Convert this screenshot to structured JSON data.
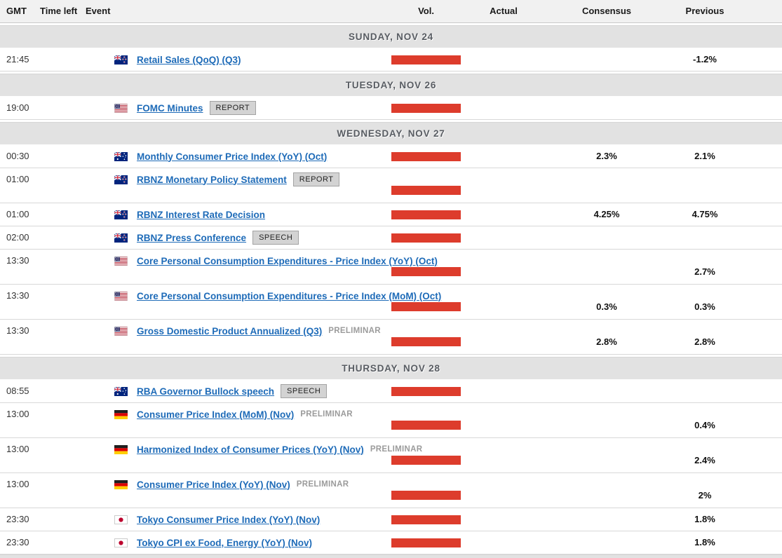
{
  "header": {
    "gmt": "GMT",
    "time_left": "Time left",
    "event": "Event",
    "vol": "Vol.",
    "actual": "Actual",
    "consensus": "Consensus",
    "previous": "Previous"
  },
  "colors": {
    "volume_bar": "#dd3c2c",
    "link_blue": "#1e6bb8",
    "day_row_bg": "#e2e2e2",
    "badge_bg": "#d3d3d3",
    "badge_border": "#a3a3a3",
    "preliminary_text": "#9b9b9b"
  },
  "days": [
    {
      "label": "SUNDAY, NOV 24",
      "events": [
        {
          "time": "21:45",
          "country": "new-zealand",
          "title": "Retail Sales (QoQ) (Q3)",
          "badge": "",
          "note": "",
          "tall": false,
          "actual": "",
          "consensus": "",
          "previous": "-1.2%"
        }
      ]
    },
    {
      "label": "TUESDAY, NOV 26",
      "events": [
        {
          "time": "19:00",
          "country": "united-states",
          "title": "FOMC Minutes",
          "badge": "REPORT",
          "note": "",
          "tall": false,
          "actual": "",
          "consensus": "",
          "previous": ""
        }
      ]
    },
    {
      "label": "WEDNESDAY, NOV 27",
      "events": [
        {
          "time": "00:30",
          "country": "australia",
          "title": "Monthly Consumer Price Index (YoY) (Oct)",
          "badge": "",
          "note": "",
          "tall": false,
          "actual": "",
          "consensus": "2.3%",
          "previous": "2.1%"
        },
        {
          "time": "01:00",
          "country": "new-zealand",
          "title": "RBNZ Monetary Policy Statement",
          "badge": "REPORT",
          "note": "",
          "tall": true,
          "actual": "",
          "consensus": "",
          "previous": ""
        },
        {
          "time": "01:00",
          "country": "new-zealand",
          "title": "RBNZ Interest Rate Decision",
          "badge": "",
          "note": "",
          "tall": false,
          "actual": "",
          "consensus": "4.25%",
          "previous": "4.75%"
        },
        {
          "time": "02:00",
          "country": "new-zealand",
          "title": "RBNZ Press Conference",
          "badge": "SPEECH",
          "note": "",
          "tall": false,
          "actual": "",
          "consensus": "",
          "previous": ""
        },
        {
          "time": "13:30",
          "country": "united-states",
          "title": "Core Personal Consumption Expenditures - Price Index (YoY) (Oct)",
          "badge": "",
          "note": "",
          "tall": true,
          "actual": "",
          "consensus": "",
          "previous": "2.7%"
        },
        {
          "time": "13:30",
          "country": "united-states",
          "title": "Core Personal Consumption Expenditures - Price Index (MoM) (Oct)",
          "badge": "",
          "note": "",
          "tall": true,
          "actual": "",
          "consensus": "0.3%",
          "previous": "0.3%"
        },
        {
          "time": "13:30",
          "country": "united-states",
          "title": "Gross Domestic Product Annualized (Q3)",
          "badge": "",
          "note": "PRELIMINAR",
          "tall": true,
          "actual": "",
          "consensus": "2.8%",
          "previous": "2.8%"
        }
      ]
    },
    {
      "label": "THURSDAY, NOV 28",
      "events": [
        {
          "time": "08:55",
          "country": "australia",
          "title": "RBA Governor Bullock speech",
          "badge": "SPEECH",
          "note": "",
          "tall": false,
          "actual": "",
          "consensus": "",
          "previous": ""
        },
        {
          "time": "13:00",
          "country": "germany",
          "title": "Consumer Price Index (MoM) (Nov)",
          "badge": "",
          "note": "PRELIMINAR",
          "tall": true,
          "actual": "",
          "consensus": "",
          "previous": "0.4%"
        },
        {
          "time": "13:00",
          "country": "germany",
          "title": "Harmonized Index of Consumer Prices (YoY) (Nov)",
          "badge": "",
          "note": "PRELIMINAR",
          "tall": true,
          "actual": "",
          "consensus": "",
          "previous": "2.4%"
        },
        {
          "time": "13:00",
          "country": "germany",
          "title": "Consumer Price Index (YoY) (Nov)",
          "badge": "",
          "note": "PRELIMINAR",
          "tall": true,
          "actual": "",
          "consensus": "",
          "previous": "2%"
        },
        {
          "time": "23:30",
          "country": "japan",
          "title": "Tokyo Consumer Price Index (YoY) (Nov)",
          "badge": "",
          "note": "",
          "tall": false,
          "actual": "",
          "consensus": "",
          "previous": "1.8%"
        },
        {
          "time": "23:30",
          "country": "japan",
          "title": "Tokyo CPI ex Food, Energy (YoY) (Nov)",
          "badge": "",
          "note": "",
          "tall": false,
          "actual": "",
          "consensus": "",
          "previous": "1.8%"
        }
      ]
    }
  ]
}
